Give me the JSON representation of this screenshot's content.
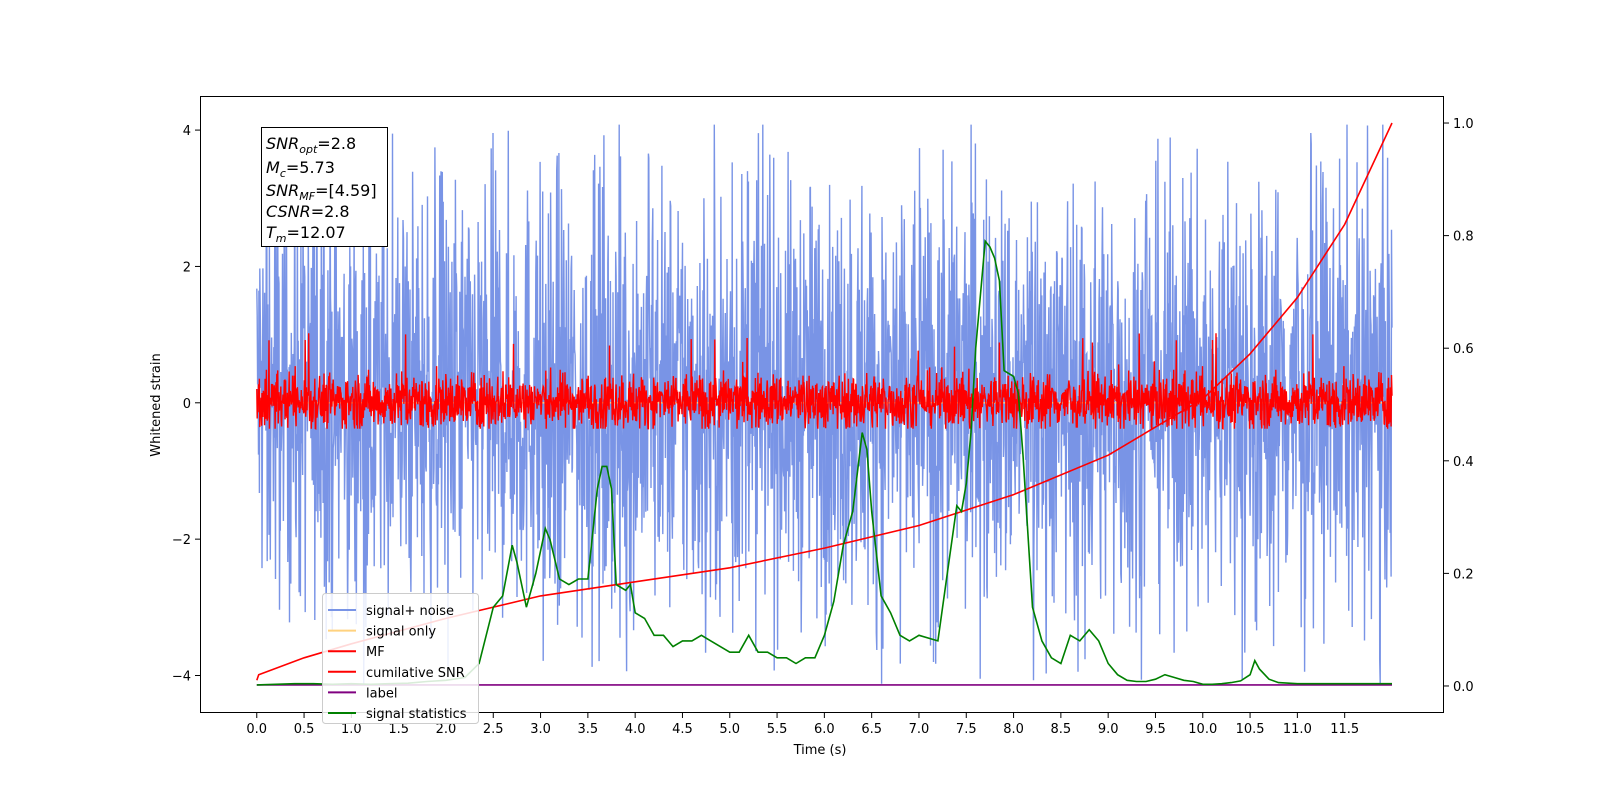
{
  "chart_data": {
    "type": "line",
    "xlabel": "Time (s)",
    "ylabel": "Whitened strain",
    "xlim": [
      -0.6,
      12.55
    ],
    "ylim": [
      -4.55,
      4.5
    ],
    "y2lim": [
      -0.048,
      1.048
    ],
    "grid": false,
    "x_ticks": [
      "0.0",
      "0.5",
      "1.0",
      "1.5",
      "2.0",
      "2.5",
      "3.0",
      "3.5",
      "4.0",
      "4.5",
      "5.0",
      "5.5",
      "6.0",
      "6.5",
      "7.0",
      "7.5",
      "8.0",
      "8.5",
      "9.0",
      "9.5",
      "10.0",
      "10.5",
      "11.0",
      "11.5"
    ],
    "y_ticks": [
      "4",
      "2",
      "0",
      "−2",
      "−4"
    ],
    "y2_ticks": [
      "1.0",
      "0.8",
      "0.6",
      "0.4",
      "0.2",
      "0.0"
    ],
    "legend_position": "lower-left",
    "info_box": {
      "snr_opt": {
        "main": "SNR",
        "sub": "opt",
        "value": "=2.8"
      },
      "mc": {
        "main": "M",
        "sub": "c",
        "value": "=5.73"
      },
      "snr_mf": {
        "main": "SNR",
        "sub": "MF",
        "value": "=[4.59]"
      },
      "csnr": {
        "main": "CSNR",
        "value": "=2.8"
      },
      "tm": {
        "main": "T",
        "sub": "m",
        "value": "=12.07"
      }
    },
    "series": [
      {
        "name": "signal+ noise",
        "color": "#7994e6",
        "axis": "left",
        "style": "noise band",
        "x_range": [
          0.0,
          12.0
        ],
        "typical_range": [
          -2.0,
          2.2
        ],
        "max": 4.08,
        "min": -4.12
      },
      {
        "name": "signal only",
        "color": "#ffd27f",
        "axis": "left",
        "style": "flat near zero",
        "x_range": [
          0.0,
          12.0
        ],
        "value": 0.0
      },
      {
        "name": "MF",
        "color": "#ff0000",
        "axis": "left",
        "style": "noise band",
        "x_range": [
          0.0,
          12.0
        ],
        "typical_range": [
          -0.35,
          0.4
        ],
        "max": 1.02,
        "min": -0.38
      },
      {
        "name": "cumilative SNR",
        "color": "#ff0000",
        "axis": "right",
        "x": [
          0.0,
          0.02,
          0.5,
          1.0,
          2.0,
          3.0,
          4.0,
          5.0,
          6.0,
          7.0,
          8.0,
          9.0,
          10.0,
          10.5,
          11.0,
          11.5,
          12.0
        ],
        "values": [
          0.01,
          0.02,
          0.05,
          0.075,
          0.12,
          0.16,
          0.185,
          0.21,
          0.245,
          0.285,
          0.34,
          0.41,
          0.51,
          0.59,
          0.69,
          0.82,
          1.0
        ]
      },
      {
        "name": "label",
        "color": "#800080",
        "axis": "right",
        "x": [
          0.0,
          12.0
        ],
        "values": [
          0.002,
          0.002
        ]
      },
      {
        "name": "signal statistics",
        "color": "#008000",
        "axis": "right",
        "x": [
          0.0,
          0.2,
          0.4,
          0.6,
          0.8,
          1.0,
          1.2,
          1.4,
          1.6,
          1.8,
          2.0,
          2.2,
          2.35,
          2.5,
          2.6,
          2.7,
          2.75,
          2.85,
          2.95,
          3.05,
          3.1,
          3.2,
          3.3,
          3.4,
          3.5,
          3.6,
          3.65,
          3.7,
          3.75,
          3.8,
          3.9,
          3.95,
          4.0,
          4.1,
          4.2,
          4.3,
          4.4,
          4.5,
          4.6,
          4.7,
          4.8,
          4.9,
          5.0,
          5.1,
          5.2,
          5.3,
          5.4,
          5.5,
          5.6,
          5.7,
          5.8,
          5.9,
          6.0,
          6.05,
          6.1,
          6.2,
          6.3,
          6.4,
          6.45,
          6.5,
          6.6,
          6.7,
          6.8,
          6.9,
          7.0,
          7.2,
          7.3,
          7.4,
          7.45,
          7.5,
          7.55,
          7.6,
          7.7,
          7.75,
          7.8,
          7.85,
          7.9,
          8.0,
          8.05,
          8.1,
          8.2,
          8.3,
          8.4,
          8.5,
          8.6,
          8.7,
          8.8,
          8.9,
          9.0,
          9.1,
          9.2,
          9.3,
          9.4,
          9.5,
          9.6,
          9.7,
          9.8,
          9.9,
          10.0,
          10.1,
          10.2,
          10.3,
          10.4,
          10.5,
          10.55,
          10.6,
          10.7,
          10.8,
          11.0,
          11.2,
          11.5,
          11.8,
          12.0
        ],
        "values": [
          0.002,
          0.003,
          0.004,
          0.004,
          0.003,
          0.004,
          0.003,
          0.004,
          0.005,
          0.008,
          0.01,
          0.015,
          0.04,
          0.14,
          0.16,
          0.25,
          0.22,
          0.14,
          0.2,
          0.28,
          0.26,
          0.19,
          0.18,
          0.19,
          0.19,
          0.35,
          0.39,
          0.39,
          0.35,
          0.18,
          0.17,
          0.18,
          0.13,
          0.12,
          0.09,
          0.09,
          0.07,
          0.08,
          0.08,
          0.09,
          0.08,
          0.07,
          0.06,
          0.06,
          0.09,
          0.06,
          0.06,
          0.05,
          0.05,
          0.04,
          0.05,
          0.05,
          0.09,
          0.12,
          0.15,
          0.25,
          0.31,
          0.45,
          0.42,
          0.31,
          0.16,
          0.13,
          0.09,
          0.08,
          0.09,
          0.08,
          0.2,
          0.32,
          0.31,
          0.36,
          0.45,
          0.6,
          0.79,
          0.78,
          0.76,
          0.72,
          0.56,
          0.55,
          0.52,
          0.41,
          0.14,
          0.08,
          0.05,
          0.04,
          0.09,
          0.08,
          0.1,
          0.08,
          0.04,
          0.02,
          0.01,
          0.008,
          0.008,
          0.012,
          0.02,
          0.015,
          0.01,
          0.008,
          0.003,
          0.003,
          0.004,
          0.006,
          0.009,
          0.02,
          0.045,
          0.03,
          0.012,
          0.006,
          0.004,
          0.004,
          0.004,
          0.004,
          0.004
        ]
      }
    ]
  }
}
